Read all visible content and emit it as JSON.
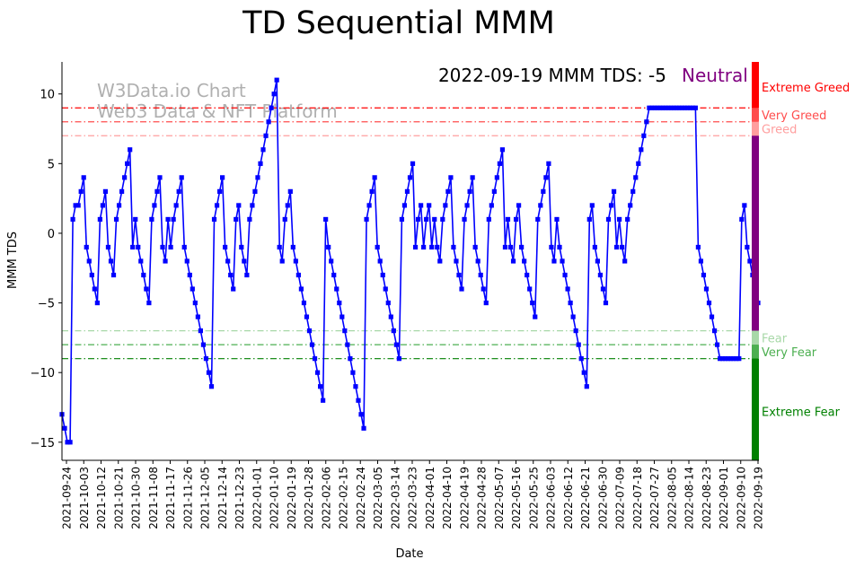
{
  "chart_data": {
    "type": "line",
    "title": "TD Sequential MMM",
    "xlabel": "Date",
    "ylabel": "MMM TDS",
    "ylim": [
      -16.3,
      12.3
    ],
    "yticks": [
      10,
      5,
      0,
      -5,
      -10,
      -15
    ],
    "annotation": {
      "text": "2022-09-19 MMM TDS: -5",
      "status": "Neutral",
      "status_color": "#800080"
    },
    "watermark": [
      "W3Data.io Chart",
      "Web3 Data & NFT Platform"
    ],
    "date_start": "2021-09-24",
    "date_end": "2022-09-19",
    "x_ticks": [
      "2021-09-24",
      "2021-10-03",
      "2021-10-12",
      "2021-10-21",
      "2021-10-30",
      "2021-11-08",
      "2021-11-17",
      "2021-11-26",
      "2021-12-05",
      "2021-12-14",
      "2021-12-23",
      "2022-01-01",
      "2022-01-10",
      "2022-01-19",
      "2022-01-28",
      "2022-02-06",
      "2022-02-15",
      "2022-02-24",
      "2022-03-05",
      "2022-03-14",
      "2022-03-23",
      "2022-04-01",
      "2022-04-10",
      "2022-04-19",
      "2022-04-28",
      "2022-05-07",
      "2022-05-16",
      "2022-05-25",
      "2022-06-03",
      "2022-06-12",
      "2022-06-21",
      "2022-06-30",
      "2022-07-09",
      "2022-07-18",
      "2022-07-27",
      "2022-08-05",
      "2022-08-14",
      "2022-08-23",
      "2022-09-01",
      "2022-09-10",
      "2022-09-19"
    ],
    "levels": [
      {
        "label": "Extreme Greed",
        "value": 9,
        "color": "#ff0000"
      },
      {
        "label": "Very Greed",
        "value": 8,
        "color": "#ff4d4d"
      },
      {
        "label": "Greed",
        "value": 7,
        "color": "#ff9e9e"
      },
      {
        "label": "Fear",
        "value": -7,
        "color": "#a8d8a8"
      },
      {
        "label": "Very Fear",
        "value": -8,
        "color": "#4caf50"
      },
      {
        "label": "Extreme Fear",
        "value": -9,
        "color": "#008000"
      }
    ],
    "zone_labels": [
      {
        "label": "Extreme Greed",
        "value": 10.5,
        "color": "#ff0000"
      },
      {
        "label": "Very Greed",
        "value": 8.5,
        "color": "#ff4d4d"
      },
      {
        "label": "Greed",
        "value": 7.5,
        "color": "#ff9e9e"
      },
      {
        "label": "Fear",
        "value": -7.5,
        "color": "#a8d8a8"
      },
      {
        "label": "Very Fear",
        "value": -8.5,
        "color": "#4caf50"
      },
      {
        "label": "Extreme Fear",
        "value": -12.8,
        "color": "#008000"
      }
    ],
    "side_bar": [
      {
        "from": 9,
        "to": 12.3,
        "color": "#ff0000"
      },
      {
        "from": 8,
        "to": 9,
        "color": "#ff4d4d"
      },
      {
        "from": 7,
        "to": 8,
        "color": "#ff9e9e"
      },
      {
        "from": -7,
        "to": 7,
        "color": "#800080"
      },
      {
        "from": -8,
        "to": -7,
        "color": "#a8d8a8"
      },
      {
        "from": -9,
        "to": -8,
        "color": "#4caf50"
      },
      {
        "from": -16.3,
        "to": -9,
        "color": "#008000"
      }
    ],
    "series": [
      {
        "name": "MMM TDS",
        "color": "#0000ff",
        "values": [
          -13,
          -14,
          -15,
          -15,
          1,
          2,
          2,
          3,
          4,
          -1,
          -2,
          -3,
          -4,
          -5,
          1,
          2,
          3,
          -1,
          -2,
          -3,
          1,
          2,
          3,
          4,
          5,
          6,
          -1,
          1,
          -1,
          -2,
          -3,
          -4,
          -5,
          1,
          2,
          3,
          4,
          -1,
          -2,
          1,
          -1,
          1,
          2,
          3,
          4,
          -1,
          -2,
          -3,
          -4,
          -5,
          -6,
          -7,
          -8,
          -9,
          -10,
          -11,
          1,
          2,
          3,
          4,
          -1,
          -2,
          -3,
          -4,
          1,
          2,
          -1,
          -2,
          -3,
          1,
          2,
          3,
          4,
          5,
          6,
          7,
          8,
          9,
          10,
          11,
          -1,
          -2,
          1,
          2,
          3,
          -1,
          -2,
          -3,
          -4,
          -5,
          -6,
          -7,
          -8,
          -9,
          -10,
          -11,
          -12,
          1,
          -1,
          -2,
          -3,
          -4,
          -5,
          -6,
          -7,
          -8,
          -9,
          -10,
          -11,
          -12,
          -13,
          -14,
          1,
          2,
          3,
          4,
          -1,
          -2,
          -3,
          -4,
          -5,
          -6,
          -7,
          -8,
          -9,
          1,
          2,
          3,
          4,
          5,
          -1,
          1,
          2,
          -1,
          1,
          2,
          -1,
          1,
          -1,
          -2,
          1,
          2,
          3,
          4,
          -1,
          -2,
          -3,
          -4,
          1,
          2,
          3,
          4,
          -1,
          -2,
          -3,
          -4,
          -5,
          1,
          2,
          3,
          4,
          5,
          6,
          -1,
          1,
          -1,
          -2,
          1,
          2,
          -1,
          -2,
          -3,
          -4,
          -5,
          -6,
          1,
          2,
          3,
          4,
          5,
          -1,
          -2,
          1,
          -1,
          -2,
          -3,
          -4,
          -5,
          -6,
          -7,
          -8,
          -9,
          -10,
          -11,
          1,
          2,
          -1,
          -2,
          -3,
          -4,
          -5,
          1,
          2,
          3,
          -1,
          1,
          -1,
          -2,
          1,
          2,
          3,
          4,
          5,
          6,
          7,
          8,
          9,
          9,
          9,
          9,
          9,
          9,
          9,
          9,
          9,
          9,
          9,
          9,
          9,
          9,
          9,
          9,
          9,
          9,
          -1,
          -2,
          -3,
          -4,
          -5,
          -6,
          -7,
          -8,
          -9,
          -9,
          -9,
          -9,
          -9,
          -9,
          -9,
          -9,
          1,
          2,
          -1,
          -2,
          -3,
          -4,
          -5
        ]
      }
    ]
  }
}
